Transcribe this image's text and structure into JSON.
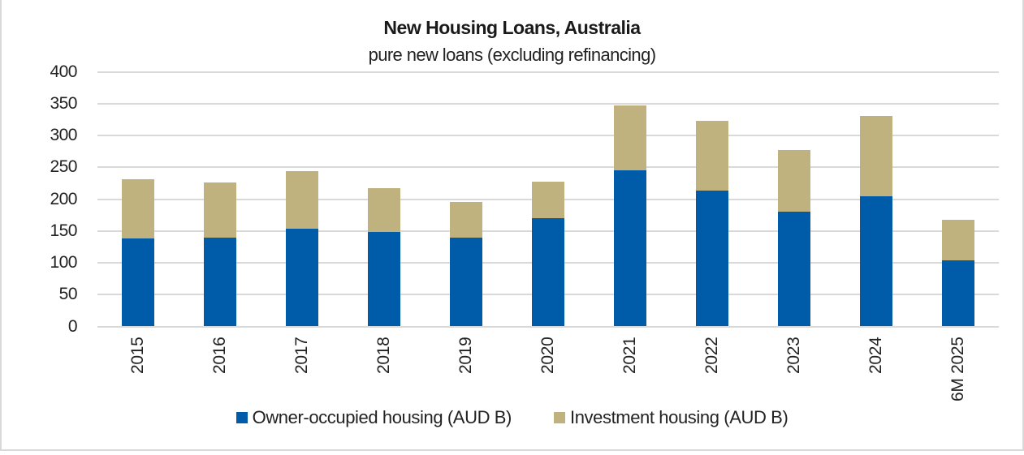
{
  "chart_data": {
    "type": "bar",
    "stacked": true,
    "title": "New Housing Loans, Australia",
    "subtitle": "pure new loans (excluding refinancing)",
    "xlabel": "",
    "ylabel": "",
    "ylim": [
      0,
      400
    ],
    "yticks": [
      0,
      50,
      100,
      150,
      200,
      250,
      300,
      350,
      400
    ],
    "grid": true,
    "legend_position": "bottom",
    "categories": [
      "2015",
      "2016",
      "2017",
      "2018",
      "2019",
      "2020",
      "2021",
      "2022",
      "2023",
      "2024",
      "6M 2025"
    ],
    "series": [
      {
        "name": "Owner-occupied housing (AUD B)",
        "color": "#005ca8",
        "values": [
          138,
          140,
          153,
          148,
          139,
          170,
          245,
          213,
          180,
          205,
          104
        ]
      },
      {
        "name": "Investment housing (AUD B)",
        "color": "#bfb27e",
        "values": [
          93,
          86,
          91,
          69,
          56,
          57,
          102,
          110,
          97,
          125,
          64
        ]
      }
    ],
    "totals": [
      231,
      226,
      244,
      217,
      195,
      227,
      347,
      323,
      277,
      330,
      168
    ]
  },
  "colors": {
    "owner_occupied": "#005ca8",
    "investment": "#bfb27e",
    "grid": "#d9d9d9"
  }
}
